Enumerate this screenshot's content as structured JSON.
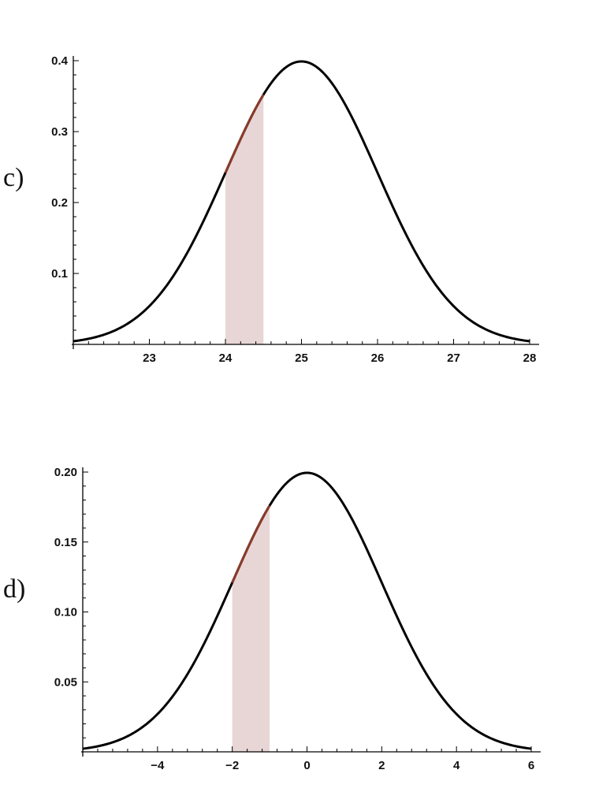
{
  "chart_data": [
    {
      "type": "area",
      "panel_label": "c)",
      "title": "",
      "xlabel": "",
      "ylabel": "",
      "distribution": {
        "mean": 25,
        "sd": 1
      },
      "xlim": [
        22,
        28
      ],
      "ylim": [
        0,
        0.4
      ],
      "x_ticks": [
        23,
        24,
        25,
        26,
        27,
        28
      ],
      "x_tick_labels": [
        "23",
        "24",
        "25",
        "26",
        "27",
        "28"
      ],
      "y_ticks": [
        0.1,
        0.2,
        0.3,
        0.4
      ],
      "y_tick_labels": [
        "0.1",
        "0.2",
        "0.3",
        "0.4"
      ],
      "shaded_interval": [
        24,
        24.5
      ],
      "colors": {
        "curve": "#000000",
        "shade": "#e8d6d6",
        "shade_edge": "#8b3a2a"
      },
      "grid": false
    },
    {
      "type": "area",
      "panel_label": "d)",
      "title": "",
      "xlabel": "",
      "ylabel": "",
      "distribution": {
        "mean": 0,
        "sd": 2
      },
      "xlim": [
        -6,
        6
      ],
      "ylim": [
        0,
        0.2
      ],
      "x_ticks": [
        -4,
        -2,
        0,
        2,
        4,
        6
      ],
      "x_tick_labels": [
        "−4",
        "−2",
        "0",
        "2",
        "4",
        "6"
      ],
      "y_ticks": [
        0.05,
        0.1,
        0.15,
        0.2
      ],
      "y_tick_labels": [
        "0.05",
        "0.10",
        "0.15",
        "0.20"
      ],
      "shaded_interval": [
        -2,
        -1
      ],
      "colors": {
        "curve": "#000000",
        "shade": "#e8d6d6",
        "shade_edge": "#8b3a2a"
      },
      "grid": false
    }
  ]
}
